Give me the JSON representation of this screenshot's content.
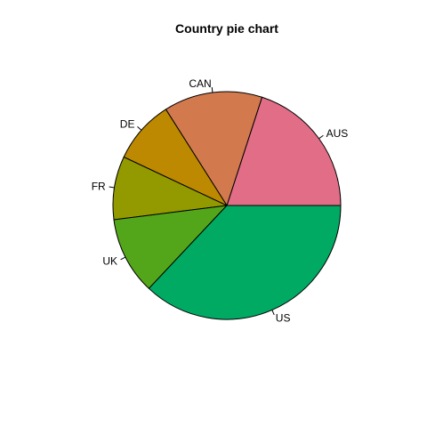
{
  "chart_data": {
    "type": "pie",
    "title": "Country pie chart",
    "start_angle_deg": 0,
    "direction": "counterclockwise",
    "slices": [
      {
        "label": "AUS",
        "value": 20,
        "color": "#E16D87"
      },
      {
        "label": "CAN",
        "value": 14,
        "color": "#D2794E"
      },
      {
        "label": "DE",
        "value": 9,
        "color": "#BC8900"
      },
      {
        "label": "FR",
        "value": 9,
        "color": "#929A00"
      },
      {
        "label": "UK",
        "value": 11,
        "color": "#53A61A"
      },
      {
        "label": "US",
        "value": 37,
        "color": "#00AA62"
      }
    ]
  }
}
